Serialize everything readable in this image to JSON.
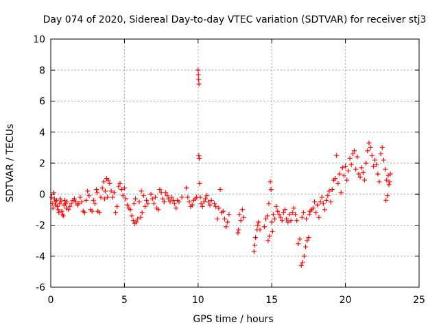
{
  "chart_data": {
    "type": "scatter",
    "title": "Day 074 of 2020, Sidereal Day-to-day VTEC variation (SDTVAR) for receiver stj3",
    "xlabel": "GPS time / hours",
    "ylabel": "SDTVAR / TECUs",
    "xlim": [
      0,
      25
    ],
    "ylim": [
      -6,
      10
    ],
    "xticks": [
      0,
      5,
      10,
      15,
      20,
      25
    ],
    "yticks": [
      -6,
      -4,
      -2,
      0,
      2,
      4,
      6,
      8,
      10
    ],
    "grid": true,
    "marker": "plus",
    "color": "#ff0000",
    "series": [
      {
        "name": "SDTVAR",
        "points": [
          [
            0.05,
            -0.2
          ],
          [
            0.1,
            -0.6
          ],
          [
            0.15,
            -0.9
          ],
          [
            0.2,
            0.1
          ],
          [
            0.25,
            -0.3
          ],
          [
            0.3,
            -0.5
          ],
          [
            0.35,
            -0.7
          ],
          [
            0.4,
            -0.4
          ],
          [
            0.45,
            -0.8
          ],
          [
            0.5,
            -1.0
          ],
          [
            0.55,
            -1.2
          ],
          [
            0.6,
            -0.6
          ],
          [
            0.65,
            -0.3
          ],
          [
            0.7,
            -0.5
          ],
          [
            0.75,
            -1.1
          ],
          [
            0.8,
            -1.3
          ],
          [
            0.85,
            -1.4
          ],
          [
            0.9,
            -0.7
          ],
          [
            0.95,
            -0.4
          ],
          [
            1.0,
            -0.6
          ],
          [
            1.05,
            -0.9
          ],
          [
            1.1,
            -0.5
          ],
          [
            1.2,
            -1.0
          ],
          [
            1.3,
            -0.8
          ],
          [
            1.4,
            -0.6
          ],
          [
            1.5,
            -0.4
          ],
          [
            1.6,
            -0.3
          ],
          [
            1.7,
            -0.5
          ],
          [
            1.8,
            -0.7
          ],
          [
            1.9,
            -0.6
          ],
          [
            2.0,
            -0.2
          ],
          [
            2.1,
            -0.5
          ],
          [
            2.2,
            -1.1
          ],
          [
            2.3,
            -1.2
          ],
          [
            2.4,
            -0.4
          ],
          [
            2.5,
            0.2
          ],
          [
            2.6,
            -0.1
          ],
          [
            2.7,
            -1.0
          ],
          [
            2.8,
            -1.1
          ],
          [
            2.9,
            -0.4
          ],
          [
            3.0,
            -0.6
          ],
          [
            3.1,
            0.3
          ],
          [
            3.15,
            0.1
          ],
          [
            3.2,
            -1.1
          ],
          [
            3.3,
            -1.2
          ],
          [
            3.4,
            -0.2
          ],
          [
            3.5,
            0.4
          ],
          [
            3.6,
            0.8
          ],
          [
            3.65,
            -0.3
          ],
          [
            3.7,
            0.2
          ],
          [
            3.8,
            1.0
          ],
          [
            3.85,
            -0.2
          ],
          [
            3.9,
            0.9
          ],
          [
            4.0,
            0.7
          ],
          [
            4.1,
            0.2
          ],
          [
            4.2,
            -0.2
          ],
          [
            4.3,
            0.1
          ],
          [
            4.4,
            -1.2
          ],
          [
            4.5,
            -0.8
          ],
          [
            4.6,
            0.5
          ],
          [
            4.7,
            0.7
          ],
          [
            4.8,
            0.3
          ],
          [
            4.9,
            -0.1
          ],
          [
            5.0,
            0.4
          ],
          [
            5.1,
            -0.3
          ],
          [
            5.2,
            -0.7
          ],
          [
            5.3,
            -0.9
          ],
          [
            5.4,
            -1.0
          ],
          [
            5.5,
            -1.4
          ],
          [
            5.6,
            -1.7
          ],
          [
            5.65,
            -0.6
          ],
          [
            5.7,
            -1.9
          ],
          [
            5.75,
            -0.3
          ],
          [
            5.8,
            -1.8
          ],
          [
            5.9,
            -1.6
          ],
          [
            6.0,
            -0.5
          ],
          [
            6.1,
            -1.5
          ],
          [
            6.15,
            0.2
          ],
          [
            6.2,
            -1.2
          ],
          [
            6.3,
            -0.1
          ],
          [
            6.4,
            -0.8
          ],
          [
            6.5,
            -0.4
          ],
          [
            6.6,
            -0.6
          ],
          [
            6.8,
            0.0
          ],
          [
            6.9,
            -0.3
          ],
          [
            7.0,
            -0.6
          ],
          [
            7.1,
            -0.2
          ],
          [
            7.2,
            -0.9
          ],
          [
            7.3,
            -1.0
          ],
          [
            7.4,
            0.3
          ],
          [
            7.5,
            0.1
          ],
          [
            7.6,
            -0.3
          ],
          [
            7.7,
            -0.5
          ],
          [
            7.8,
            0.1
          ],
          [
            7.9,
            -0.1
          ],
          [
            8.0,
            -0.3
          ],
          [
            8.1,
            -0.5
          ],
          [
            8.2,
            -0.2
          ],
          [
            8.3,
            -0.4
          ],
          [
            8.4,
            -0.6
          ],
          [
            8.5,
            -0.9
          ],
          [
            8.6,
            -0.4
          ],
          [
            8.7,
            -0.5
          ],
          [
            8.9,
            -0.2
          ],
          [
            9.2,
            0.4
          ],
          [
            9.3,
            -0.2
          ],
          [
            9.4,
            -0.5
          ],
          [
            9.5,
            -0.8
          ],
          [
            9.6,
            -0.7
          ],
          [
            9.7,
            -0.4
          ],
          [
            9.8,
            -0.3
          ],
          [
            9.9,
            -0.2
          ],
          [
            10.0,
            8.0
          ],
          [
            10.02,
            7.7
          ],
          [
            10.04,
            7.4
          ],
          [
            10.06,
            7.1
          ],
          [
            10.05,
            2.5
          ],
          [
            10.08,
            2.3
          ],
          [
            10.1,
            0.7
          ],
          [
            10.15,
            -0.2
          ],
          [
            10.2,
            -0.6
          ],
          [
            10.3,
            -0.8
          ],
          [
            10.4,
            -0.5
          ],
          [
            10.5,
            -0.3
          ],
          [
            10.6,
            -0.1
          ],
          [
            10.7,
            -0.5
          ],
          [
            10.8,
            -0.7
          ],
          [
            10.9,
            -0.4
          ],
          [
            11.1,
            -0.6
          ],
          [
            11.2,
            -0.8
          ],
          [
            11.3,
            -1.6
          ],
          [
            11.4,
            -0.9
          ],
          [
            11.5,
            0.3
          ],
          [
            11.6,
            -1.2
          ],
          [
            11.7,
            -1.1
          ],
          [
            11.8,
            -1.6
          ],
          [
            11.9,
            -2.1
          ],
          [
            12.0,
            -1.8
          ],
          [
            12.1,
            -1.3
          ],
          [
            12.7,
            -2.5
          ],
          [
            12.75,
            -2.3
          ],
          [
            12.8,
            -1.3
          ],
          [
            12.9,
            -1.7
          ],
          [
            13.0,
            -1.0
          ],
          [
            13.1,
            -1.5
          ],
          [
            13.8,
            -3.7
          ],
          [
            13.85,
            -3.3
          ],
          [
            13.9,
            -2.8
          ],
          [
            14.0,
            -2.3
          ],
          [
            14.05,
            -2.0
          ],
          [
            14.1,
            -1.8
          ],
          [
            14.2,
            -2.3
          ],
          [
            14.5,
            -2.1
          ],
          [
            14.6,
            -1.6
          ],
          [
            14.7,
            -1.4
          ],
          [
            14.75,
            -3.0
          ],
          [
            14.8,
            -0.6
          ],
          [
            14.85,
            -2.7
          ],
          [
            14.9,
            0.8
          ],
          [
            14.95,
            0.3
          ],
          [
            15.0,
            -1.8
          ],
          [
            15.05,
            -2.4
          ],
          [
            15.1,
            -1.3
          ],
          [
            15.2,
            -1.6
          ],
          [
            15.3,
            -0.8
          ],
          [
            15.4,
            -1.1
          ],
          [
            15.5,
            -1.3
          ],
          [
            15.6,
            -1.5
          ],
          [
            15.7,
            -1.7
          ],
          [
            15.8,
            -1.2
          ],
          [
            15.9,
            -1.0
          ],
          [
            16.0,
            -1.6
          ],
          [
            16.1,
            -1.8
          ],
          [
            16.2,
            -1.3
          ],
          [
            16.3,
            -1.7
          ],
          [
            16.4,
            -1.2
          ],
          [
            16.5,
            -0.9
          ],
          [
            16.6,
            -1.3
          ],
          [
            16.7,
            -1.7
          ],
          [
            16.8,
            -3.2
          ],
          [
            16.9,
            -2.9
          ],
          [
            17.0,
            -4.6
          ],
          [
            17.05,
            -1.5
          ],
          [
            17.1,
            -4.4
          ],
          [
            17.15,
            -1.2
          ],
          [
            17.2,
            -4.0
          ],
          [
            17.3,
            -3.4
          ],
          [
            17.35,
            -1.6
          ],
          [
            17.4,
            -3.0
          ],
          [
            17.5,
            -2.8
          ],
          [
            17.55,
            -1.3
          ],
          [
            17.6,
            -1.1
          ],
          [
            17.7,
            -1.0
          ],
          [
            17.8,
            -0.9
          ],
          [
            17.9,
            -0.5
          ],
          [
            18.0,
            -1.2
          ],
          [
            18.1,
            -0.7
          ],
          [
            18.2,
            -1.5
          ],
          [
            18.3,
            -0.5
          ],
          [
            18.4,
            -0.2
          ],
          [
            18.5,
            -0.6
          ],
          [
            18.6,
            -1.0
          ],
          [
            18.7,
            -0.4
          ],
          [
            18.8,
            -0.1
          ],
          [
            18.9,
            0.2
          ],
          [
            19.0,
            -0.5
          ],
          [
            19.1,
            0.3
          ],
          [
            19.2,
            0.9
          ],
          [
            19.3,
            1.0
          ],
          [
            19.4,
            2.5
          ],
          [
            19.5,
            0.7
          ],
          [
            19.6,
            1.3
          ],
          [
            19.7,
            0.1
          ],
          [
            19.8,
            1.7
          ],
          [
            19.9,
            1.2
          ],
          [
            20.0,
            1.8
          ],
          [
            20.1,
            0.9
          ],
          [
            20.2,
            1.5
          ],
          [
            20.3,
            2.3
          ],
          [
            20.4,
            1.9
          ],
          [
            20.5,
            2.6
          ],
          [
            20.6,
            2.8
          ],
          [
            20.7,
            1.6
          ],
          [
            20.8,
            2.4
          ],
          [
            20.9,
            1.3
          ],
          [
            21.0,
            1.1
          ],
          [
            21.1,
            1.7
          ],
          [
            21.2,
            1.4
          ],
          [
            21.3,
            0.9
          ],
          [
            21.4,
            2.0
          ],
          [
            21.5,
            2.8
          ],
          [
            21.6,
            3.3
          ],
          [
            21.7,
            3.0
          ],
          [
            21.8,
            2.5
          ],
          [
            21.9,
            1.8
          ],
          [
            22.0,
            2.2
          ],
          [
            22.1,
            1.9
          ],
          [
            22.2,
            1.3
          ],
          [
            22.3,
            0.8
          ],
          [
            22.4,
            2.6
          ],
          [
            22.5,
            3.0
          ],
          [
            22.6,
            2.2
          ],
          [
            22.7,
            1.6
          ],
          [
            22.75,
            -0.4
          ],
          [
            22.8,
            0.9
          ],
          [
            22.85,
            -0.1
          ],
          [
            22.9,
            1.2
          ],
          [
            22.95,
            0.6
          ],
          [
            23.0,
            0.8
          ],
          [
            23.05,
            1.3
          ]
        ]
      }
    ]
  }
}
